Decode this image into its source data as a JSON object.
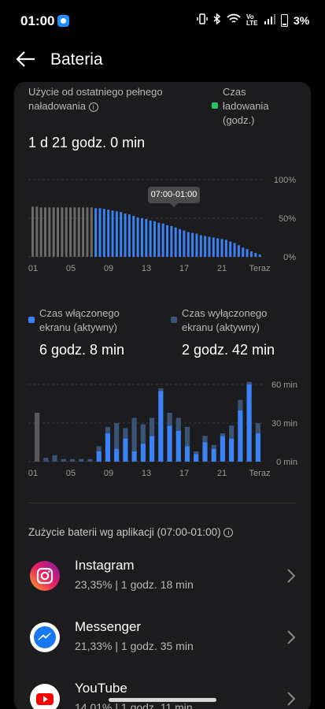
{
  "status_bar": {
    "time": "01:00",
    "volte_label": "Vo LTE",
    "battery_percent": "3%",
    "icons": [
      "messenger-notification-icon",
      "vibrate-icon",
      "bluetooth-icon",
      "wifi-icon",
      "signal-icon",
      "battery-icon"
    ]
  },
  "header": {
    "title": "Bateria"
  },
  "usage": {
    "label": "Użycie od ostatniego pełnego naładowania",
    "charging_legend": "Czas ładowania (godz.)",
    "charging_color": "#22c55e",
    "duration": "1 d 21 godz. 0 min",
    "tooltip": "07:00-01:00"
  },
  "chart_data": [
    {
      "type": "bar",
      "title": "",
      "x_ticks": [
        "01",
        "05",
        "09",
        "13",
        "17",
        "21",
        "Teraz"
      ],
      "y_ticks": [
        "100%",
        "50%",
        "0%"
      ],
      "ylim": [
        0,
        100
      ],
      "series": [
        {
          "color": "#6b6b6b",
          "values": [
            65,
            65,
            64,
            64,
            64,
            64,
            64,
            64,
            64,
            64,
            64,
            64,
            64,
            64,
            64
          ]
        },
        {
          "color": "#3b82f6",
          "values": [
            63,
            63,
            62,
            61,
            60,
            59,
            58,
            56,
            55,
            53,
            51,
            50,
            49,
            47,
            46,
            44,
            43,
            41,
            40,
            38,
            36,
            34,
            32,
            31,
            30,
            28,
            27,
            26,
            25,
            24,
            23,
            22,
            20,
            18,
            15,
            12,
            10,
            7,
            5,
            3
          ]
        }
      ]
    },
    {
      "type": "bar",
      "title": "",
      "x_ticks": [
        "01",
        "05",
        "09",
        "13",
        "17",
        "21",
        "Teraz"
      ],
      "y_ticks": [
        "60 min",
        "30 min",
        "0 min"
      ],
      "ylim": [
        0,
        60
      ],
      "series": [
        {
          "name": "Czas włączonego ekranu (aktywny)",
          "color": "#3b82f6",
          "values": [
            0,
            0,
            0,
            0,
            0,
            0,
            0,
            8,
            22,
            10,
            18,
            8,
            14,
            20,
            55,
            28,
            24,
            12,
            6,
            15,
            10,
            20,
            18,
            40,
            60,
            22
          ]
        },
        {
          "name": "Czas wyłączonego ekranu (aktywny)",
          "color": "#3a5478",
          "values": [
            38,
            3,
            5,
            2,
            2,
            2,
            2,
            4,
            5,
            20,
            8,
            26,
            15,
            14,
            2,
            10,
            10,
            15,
            2,
            5,
            3,
            2,
            10,
            8,
            2,
            8
          ]
        }
      ]
    }
  ],
  "screen_on": {
    "label": "Czas włączonego ekranu (aktywny)",
    "color": "#3b82f6",
    "value": "6 godz. 8 min"
  },
  "screen_off": {
    "label": "Czas wyłączonego ekranu (aktywny)",
    "color": "#3a5478",
    "value": "2 godz. 42 min"
  },
  "apps_section": {
    "title": "Zużycie baterii wg aplikacji (07:00-01:00)",
    "apps": [
      {
        "name": "Instagram",
        "stat": "23,35%  |  1 godz. 18 min"
      },
      {
        "name": "Messenger",
        "stat": "21,33%  |  1 godz. 35 min"
      },
      {
        "name": "YouTube",
        "stat": "14,01%  |  1 godz. 11 min"
      }
    ]
  }
}
